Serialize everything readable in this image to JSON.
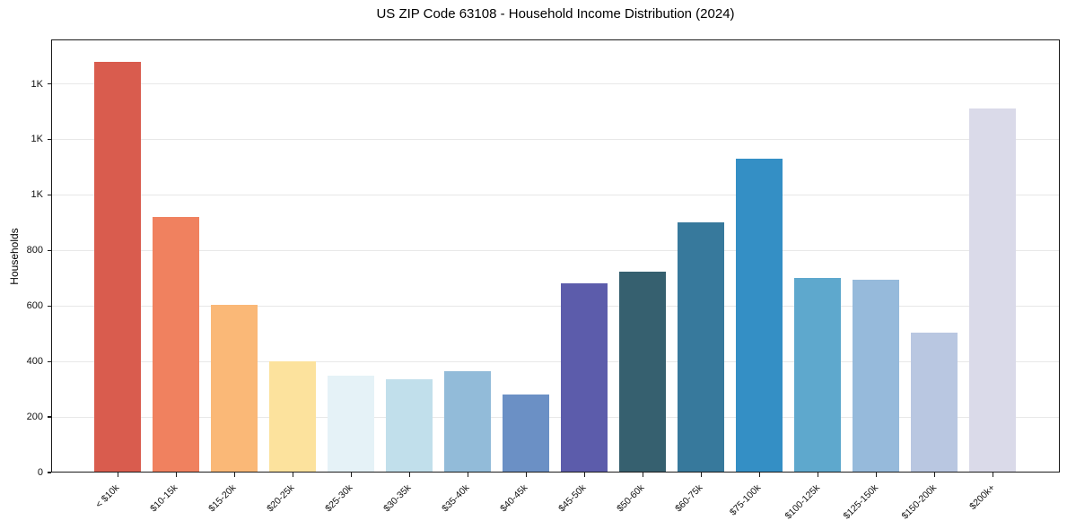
{
  "chart_data": {
    "type": "bar",
    "title": "US ZIP Code 63108 - Household Income Distribution (2024)",
    "xlabel": "",
    "ylabel": "Households",
    "categories": [
      "< $10k",
      "$10-15k",
      "$15-20k",
      "$20-25k",
      "$25-30k",
      "$30-35k",
      "$35-40k",
      "$40-45k",
      "$45-50k",
      "$50-60k",
      "$60-75k",
      "$75-100k",
      "$100-125k",
      "$125-150k",
      "$150-200k",
      "$200k+"
    ],
    "values": [
      1480,
      920,
      605,
      400,
      350,
      335,
      365,
      280,
      680,
      725,
      900,
      1130,
      700,
      695,
      505,
      1310
    ],
    "bar_colors": [
      "#d95c4e",
      "#f0815f",
      "#fab877",
      "#fce29d",
      "#e5f2f7",
      "#c1dfeb",
      "#92bbd9",
      "#6b90c5",
      "#5c5cab",
      "#36606f",
      "#37799c",
      "#348fc5",
      "#5ea8cd",
      "#96badb",
      "#b9c7e1",
      "#dadae9"
    ],
    "ylim": [
      0,
      1560
    ],
    "yticks": {
      "values": [
        0,
        200,
        400,
        600,
        800,
        1000,
        1200,
        1400
      ],
      "labels": [
        "0",
        "200",
        "400",
        "600",
        "800",
        "1K",
        "1K",
        "1K"
      ]
    },
    "grid": "horizontal",
    "legend": "none",
    "background_color": "#ffffff",
    "spine_color": "#1a1a1a",
    "grid_color": "#e8e8e8"
  }
}
